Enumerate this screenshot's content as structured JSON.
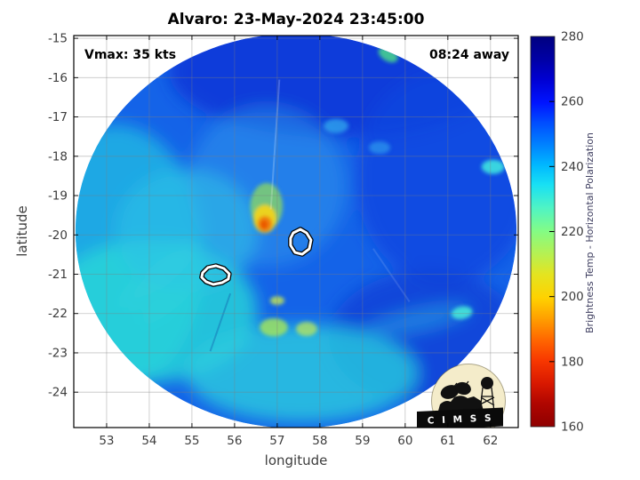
{
  "logo": {
    "org": "CIMSS",
    "banner_text": "C I M S S"
  },
  "chart_data": {
    "type": "heatmap",
    "title": "Alvaro: 23-May-2024 23:45:00",
    "xlabel": "longitude",
    "ylabel": "latitude",
    "xlim": [
      52.23,
      62.65
    ],
    "ylim": [
      -24.9,
      -14.93
    ],
    "xticks": [
      53,
      54,
      55,
      56,
      57,
      58,
      59,
      60,
      61,
      62
    ],
    "yticks": [
      -15,
      -16,
      -17,
      -18,
      -19,
      -20,
      -21,
      -22,
      -23,
      -24
    ],
    "grid": true,
    "grid_color": "#7f7f7f",
    "annotations": [
      {
        "text": "Vmax: 35 kts",
        "position": "top-left"
      },
      {
        "text": "08:24 away",
        "position": "top-right"
      }
    ],
    "colorbar": {
      "label": "Brightness Temp - Horizontal Polarization",
      "min": 160,
      "max": 280,
      "ticks": [
        280,
        260,
        240,
        220,
        200,
        180,
        160
      ],
      "colormap": "jet",
      "stops": [
        {
          "o": "0%",
          "c": "#00007f"
        },
        {
          "o": "6%",
          "c": "#0000a6"
        },
        {
          "o": "11%",
          "c": "#0000d2"
        },
        {
          "o": "17%",
          "c": "#0014ff"
        },
        {
          "o": "22%",
          "c": "#004cff"
        },
        {
          "o": "28%",
          "c": "#0084ff"
        },
        {
          "o": "33%",
          "c": "#00b8ff"
        },
        {
          "o": "38%",
          "c": "#18e0f4"
        },
        {
          "o": "44%",
          "c": "#50f4c4"
        },
        {
          "o": "50%",
          "c": "#84fc84"
        },
        {
          "o": "56%",
          "c": "#b8f050"
        },
        {
          "o": "61%",
          "c": "#e4e420"
        },
        {
          "o": "67%",
          "c": "#ffd200"
        },
        {
          "o": "72%",
          "c": "#ffa200"
        },
        {
          "o": "78%",
          "c": "#ff6400"
        },
        {
          "o": "83%",
          "c": "#f83800"
        },
        {
          "o": "89%",
          "c": "#d81800"
        },
        {
          "o": "94%",
          "c": "#b00600"
        },
        {
          "o": "100%",
          "c": "#8f0000"
        }
      ]
    },
    "swath": {
      "center_lon": 57.44,
      "center_lat": -19.9,
      "rx_deg": 5.17,
      "ry_deg": 5.02,
      "base_color": "#1463e8"
    },
    "features": [
      {
        "lon": 58.42,
        "lat": -15.83,
        "rx": 3.96,
        "ry": 1.7,
        "rot": 0,
        "color": "#0b38d8",
        "opacity": 0.9
      },
      {
        "lon": 60.92,
        "lat": -18.55,
        "rx": 2.08,
        "ry": 2.71,
        "rot": 0,
        "color": "#0c45e0",
        "opacity": 0.8
      },
      {
        "lon": 60.5,
        "lat": -22.62,
        "rx": 2.29,
        "ry": 1.7,
        "rot": 0,
        "color": "#0b3fd6",
        "opacity": 0.75
      },
      {
        "lon": 53.21,
        "lat": -20.58,
        "rx": 2.08,
        "ry": 3.39,
        "rot": 0,
        "color": "#1fb4e4",
        "opacity": 0.85
      },
      {
        "lon": 54.04,
        "lat": -21.94,
        "rx": 2.5,
        "ry": 1.81,
        "rot": 0,
        "color": "#28d8d8",
        "opacity": 0.8
      },
      {
        "lon": 56.75,
        "lat": -18.77,
        "rx": 1.88,
        "ry": 2.04,
        "rot": 0,
        "color": "#2f9cee",
        "opacity": 0.5
      },
      {
        "lon": 57.58,
        "lat": -23.52,
        "rx": 2.71,
        "ry": 1.24,
        "rot": 0,
        "color": "#2accdf",
        "opacity": 0.8
      },
      {
        "lon": 54.88,
        "lat": -19.9,
        "rx": 1.67,
        "ry": 1.58,
        "rot": 0,
        "color": "#2ec2e6",
        "opacity": 0.6
      },
      {
        "lon": 54.25,
        "lat": -21.03,
        "rx": 1.15,
        "ry": 0.3,
        "rot": -40,
        "color": "#35d0e0",
        "opacity": 0.45
      },
      {
        "lon": 54.55,
        "lat": -21.6,
        "rx": 1.0,
        "ry": 0.25,
        "rot": -40,
        "color": "#30d4dc",
        "opacity": 0.4
      },
      {
        "lon": 60.29,
        "lat": -22.17,
        "rx": 1.25,
        "ry": 0.27,
        "rot": -12,
        "color": "#2fa8e8",
        "opacity": 0.55
      },
      {
        "lon": 56.92,
        "lat": -22.35,
        "rx": 0.33,
        "ry": 0.23,
        "rot": 0,
        "color": "#9fe35f",
        "opacity": 0.85
      },
      {
        "lon": 57.69,
        "lat": -22.39,
        "rx": 0.25,
        "ry": 0.18,
        "rot": 0,
        "color": "#bce858",
        "opacity": 0.75
      },
      {
        "lon": 56.75,
        "lat": -19.27,
        "rx": 0.38,
        "ry": 0.59,
        "rot": 0,
        "color": "#8fd95e",
        "opacity": 0.75
      },
      {
        "lon": 56.71,
        "lat": -19.59,
        "rx": 0.27,
        "ry": 0.36,
        "rot": 0,
        "color": "#f2d41c",
        "opacity": 0.95
      },
      {
        "lon": 56.71,
        "lat": -19.72,
        "rx": 0.17,
        "ry": 0.2,
        "rot": 0,
        "color": "#f07810",
        "opacity": 0.95
      },
      {
        "lon": 56.69,
        "lat": -19.74,
        "rx": 0.08,
        "ry": 0.11,
        "rot": 0,
        "color": "#e84e00",
        "opacity": 0.9
      },
      {
        "lon": 59.6,
        "lat": -15.42,
        "rx": 0.25,
        "ry": 0.16,
        "rot": 30,
        "color": "#45cf8f",
        "opacity": 0.9
      },
      {
        "lon": 62.06,
        "lat": -18.27,
        "rx": 0.27,
        "ry": 0.18,
        "rot": 0,
        "color": "#3fe3e0",
        "opacity": 0.9
      },
      {
        "lon": 61.33,
        "lat": -21.98,
        "rx": 0.25,
        "ry": 0.16,
        "rot": -10,
        "color": "#45e8d8",
        "opacity": 0.9
      },
      {
        "lon": 58.38,
        "lat": -17.23,
        "rx": 0.29,
        "ry": 0.18,
        "rot": 0,
        "color": "#35b0f0",
        "opacity": 0.7
      },
      {
        "lon": 59.4,
        "lat": -17.78,
        "rx": 0.25,
        "ry": 0.16,
        "rot": 0,
        "color": "#30a8f0",
        "opacity": 0.6
      },
      {
        "lon": 57.0,
        "lat": -21.67,
        "rx": 0.17,
        "ry": 0.11,
        "rot": 0,
        "color": "#c8e850",
        "opacity": 0.8
      }
    ],
    "seams": [
      {
        "from": [
          57.05,
          -16.05
        ],
        "to": [
          56.85,
          -19.35
        ],
        "color": "rgba(255,255,255,0.22)",
        "width": 2
      },
      {
        "from": [
          55.9,
          -21.49
        ],
        "to": [
          55.43,
          -22.96
        ],
        "color": "rgba(10,50,150,0.28)",
        "width": 2
      },
      {
        "from": [
          59.25,
          -20.35
        ],
        "to": [
          60.1,
          -21.7
        ],
        "color": "rgba(255,255,255,0.12)",
        "width": 2
      }
    ],
    "islands": [
      {
        "name": "mauritius",
        "points": [
          [
            57.375,
            -19.948
          ],
          [
            57.542,
            -19.857
          ],
          [
            57.688,
            -19.948
          ],
          [
            57.792,
            -20.129
          ],
          [
            57.75,
            -20.355
          ],
          [
            57.583,
            -20.491
          ],
          [
            57.417,
            -20.446
          ],
          [
            57.313,
            -20.265
          ],
          [
            57.313,
            -20.084
          ]
        ]
      },
      {
        "name": "reunion",
        "points": [
          [
            55.25,
            -20.966
          ],
          [
            55.375,
            -20.83
          ],
          [
            55.563,
            -20.785
          ],
          [
            55.75,
            -20.853
          ],
          [
            55.875,
            -20.989
          ],
          [
            55.854,
            -21.125
          ],
          [
            55.708,
            -21.215
          ],
          [
            55.5,
            -21.26
          ],
          [
            55.333,
            -21.193
          ],
          [
            55.229,
            -21.08
          ]
        ]
      }
    ]
  }
}
